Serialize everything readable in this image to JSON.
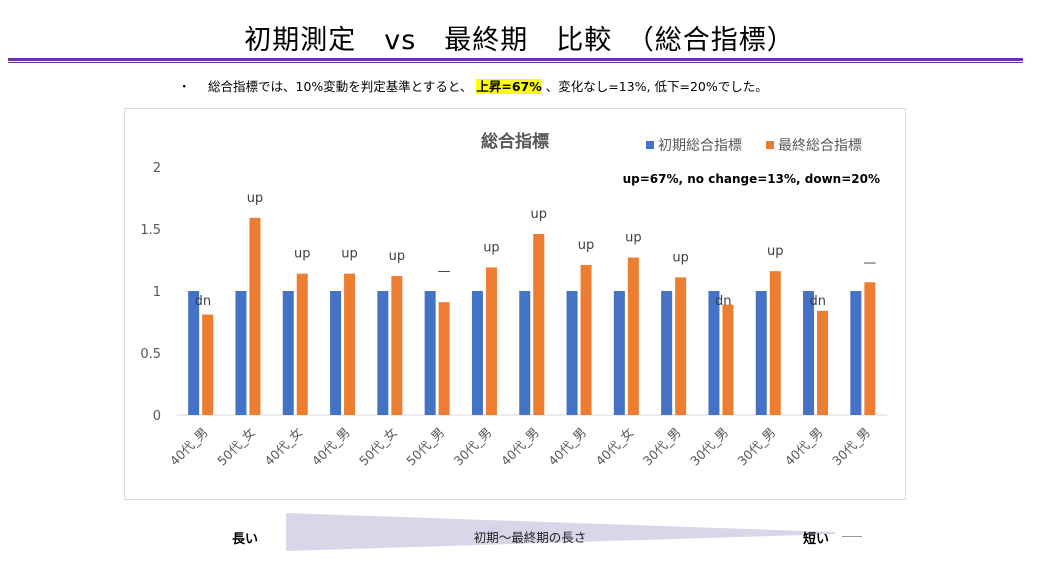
{
  "slide": {
    "title": "初期測定　vs　最終期　比較　（総合指標）",
    "bullet": "・",
    "summary_pre": "総合指標では、10%変動を判定基準とすると、",
    "summary_highlight": "上昇=67%",
    "summary_post": "、変化なし=13%, 低下=20%でした。",
    "colors": {
      "rule": "#7030a0",
      "highlight": "#ffff00"
    }
  },
  "timeline": {
    "long_label": "長い",
    "middle_label": "初期～最終期の長さ",
    "short_label": "短い",
    "color": "#d9d6ea"
  },
  "chart_data": {
    "type": "bar",
    "title": "総合指標",
    "annotation": "up=67%, no change=13%, down=20%",
    "categories": [
      "40代_男",
      "50代_女",
      "40代_女",
      "40代_男",
      "50代_女",
      "50代_男",
      "30代_男",
      "40代_男",
      "40代_男",
      "40代_女",
      "30代_男",
      "30代_男",
      "30代_男",
      "40代_男",
      "30代_男"
    ],
    "series": [
      {
        "name": "初期総合指標",
        "color": "#4472c4",
        "values": [
          1,
          1,
          1,
          1,
          1,
          1,
          1,
          1,
          1,
          1,
          1,
          1,
          1,
          1,
          1
        ]
      },
      {
        "name": "最終総合指標",
        "color": "#ed7d31",
        "values": [
          0.81,
          1.59,
          1.14,
          1.14,
          1.12,
          0.91,
          1.19,
          1.46,
          1.21,
          1.27,
          1.11,
          0.89,
          1.16,
          0.84,
          1.07
        ]
      }
    ],
    "bar_labels": [
      "dn",
      "up",
      "up",
      "up",
      "up",
      "—",
      "up",
      "up",
      "up",
      "up",
      "up",
      "dn",
      "up",
      "dn",
      "—"
    ],
    "yticks": [
      "0",
      "0.5",
      "1",
      "1.5",
      "2"
    ],
    "ylim": [
      0,
      2
    ],
    "grid": false,
    "legend": "top-right"
  }
}
